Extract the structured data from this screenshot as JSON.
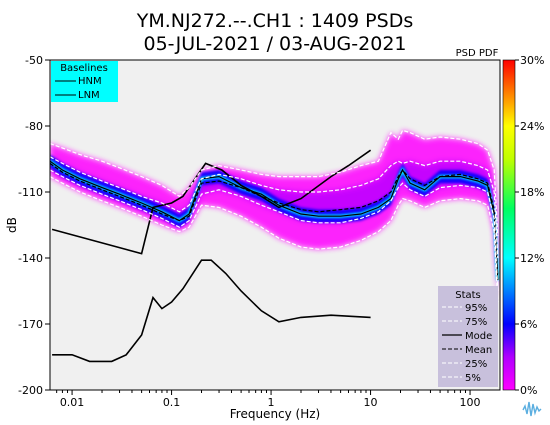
{
  "chart_data": {
    "type": "heatmap",
    "title": "YM.NJ272.--.CH1 : 1409 PSDs",
    "subtitle": "05-JUL-2021 / 03-AUG-2021",
    "xlabel": "Frequency (Hz)",
    "ylabel": "dB",
    "x_scale": "log",
    "xlim": [
      0.006,
      200
    ],
    "ylim": [
      -200,
      -50
    ],
    "x_ticks": [
      {
        "value": 0.01,
        "label": "0.01"
      },
      {
        "value": 0.1,
        "label": "0.1"
      },
      {
        "value": 1,
        "label": "1"
      },
      {
        "value": 10,
        "label": "10"
      },
      {
        "value": 100,
        "label": "100"
      }
    ],
    "y_ticks": [
      {
        "value": -50,
        "label": "-50"
      },
      {
        "value": -80,
        "label": "-80"
      },
      {
        "value": -110,
        "label": "-110"
      },
      {
        "value": -140,
        "label": "-140"
      },
      {
        "value": -170,
        "label": "-170"
      },
      {
        "value": -200,
        "label": "-200"
      }
    ],
    "colorbar": {
      "label": "PSD PDF",
      "range": [
        0,
        30
      ],
      "ticks": [
        "30%",
        "24%",
        "18%",
        "12%",
        "6%",
        "0%"
      ]
    },
    "baselines_legend": {
      "title": "Baselines",
      "entries": [
        "HNM",
        "LNM"
      ],
      "background": "#00ffff"
    },
    "stats_legend": {
      "title": "Stats",
      "entries": [
        "95%",
        "75%",
        "Mode",
        "Mean",
        "25%",
        "5%"
      ],
      "background": "#c8c0dc"
    },
    "series": [
      {
        "name": "HNM",
        "color": "#000000",
        "x": [
          0.0063,
          0.05,
          0.065,
          0.1,
          0.13,
          0.22,
          0.32,
          0.5,
          0.8,
          1.2,
          2,
          4,
          6,
          10
        ],
        "y": [
          -127,
          -138,
          -117,
          -115,
          -112,
          -97,
          -100,
          -107,
          -112,
          -117,
          -113,
          -103,
          -98,
          -91
        ]
      },
      {
        "name": "LNM",
        "color": "#000000",
        "x": [
          0.0063,
          0.01,
          0.015,
          0.025,
          0.035,
          0.05,
          0.065,
          0.08,
          0.1,
          0.13,
          0.2,
          0.25,
          0.35,
          0.5,
          0.8,
          1.2,
          2,
          4,
          10
        ],
        "y": [
          -184,
          -184,
          -187,
          -187,
          -184,
          -175,
          -158,
          -163,
          -160,
          -154,
          -141,
          -141,
          -147,
          -155,
          -164,
          -169,
          -167,
          -166,
          -167
        ]
      },
      {
        "name": "Mode",
        "color": "#000000",
        "x": [
          0.006,
          0.008,
          0.012,
          0.02,
          0.03,
          0.05,
          0.08,
          0.12,
          0.15,
          0.2,
          0.3,
          0.5,
          0.8,
          1.2,
          2,
          3,
          5,
          8,
          12,
          16,
          19,
          21,
          25,
          35,
          50,
          80,
          120,
          150,
          175,
          190
        ],
        "y": [
          -96,
          -100,
          -104,
          -108,
          -111,
          -115,
          -119,
          -123,
          -120,
          -104,
          -103,
          -108,
          -111,
          -116,
          -120,
          -121,
          -121,
          -120,
          -117,
          -113,
          -104,
          -100,
          -106,
          -109,
          -103,
          -103,
          -105,
          -107,
          -120,
          -150
        ]
      },
      {
        "name": "Mean",
        "color": "#000000",
        "x": [
          0.006,
          0.008,
          0.012,
          0.02,
          0.03,
          0.05,
          0.08,
          0.12,
          0.15,
          0.2,
          0.3,
          0.5,
          0.8,
          1.2,
          2,
          3,
          5,
          8,
          12,
          16,
          19,
          21,
          25,
          35,
          50,
          80,
          120,
          150,
          175,
          190
        ],
        "y": [
          -97,
          -101,
          -105,
          -109,
          -112,
          -116,
          -120,
          -123,
          -121,
          -106,
          -105,
          -108,
          -112,
          -115,
          -118,
          -119,
          -118,
          -117,
          -114,
          -110,
          -103,
          -100,
          -104,
          -107,
          -103,
          -102,
          -104,
          -106,
          -118,
          -148
        ]
      },
      {
        "name": "95%",
        "color": "#ffffff",
        "x": [
          0.006,
          0.008,
          0.012,
          0.02,
          0.03,
          0.05,
          0.08,
          0.12,
          0.15,
          0.2,
          0.3,
          0.5,
          0.8,
          1.2,
          2,
          3,
          5,
          8,
          12,
          16,
          19,
          21,
          25,
          35,
          50,
          80,
          120,
          150,
          175,
          190
        ],
        "y": [
          -88,
          -90,
          -93,
          -96,
          -99,
          -103,
          -107,
          -112,
          -108,
          -100,
          -98,
          -100,
          -102,
          -103,
          -103,
          -103,
          -101,
          -98,
          -96,
          -83,
          -86,
          -82,
          -83,
          -86,
          -85,
          -86,
          -88,
          -91,
          -100,
          -130
        ]
      },
      {
        "name": "75%",
        "color": "#ffffff",
        "x": [
          0.006,
          0.008,
          0.012,
          0.02,
          0.03,
          0.05,
          0.08,
          0.12,
          0.15,
          0.2,
          0.3,
          0.5,
          0.8,
          1.2,
          2,
          3,
          5,
          8,
          12,
          16,
          19,
          21,
          25,
          35,
          50,
          80,
          120,
          150,
          175,
          190
        ],
        "y": [
          -94,
          -97,
          -101,
          -105,
          -108,
          -112,
          -115,
          -119,
          -116,
          -104,
          -102,
          -104,
          -107,
          -109,
          -110,
          -110,
          -109,
          -107,
          -104,
          -98,
          -96,
          -97,
          -96,
          -98,
          -96,
          -96,
          -98,
          -100,
          -110,
          -140
        ]
      },
      {
        "name": "25%",
        "color": "#ffffff",
        "x": [
          0.006,
          0.008,
          0.012,
          0.02,
          0.03,
          0.05,
          0.08,
          0.12,
          0.15,
          0.2,
          0.3,
          0.5,
          0.8,
          1.2,
          2,
          3,
          5,
          8,
          12,
          16,
          19,
          21,
          25,
          35,
          50,
          80,
          120,
          150,
          175,
          190
        ],
        "y": [
          -100,
          -103,
          -107,
          -111,
          -114,
          -118,
          -122,
          -126,
          -123,
          -111,
          -109,
          -112,
          -116,
          -119,
          -123,
          -124,
          -124,
          -122,
          -119,
          -114,
          -108,
          -106,
          -109,
          -112,
          -108,
          -107,
          -108,
          -110,
          -122,
          -155
        ]
      },
      {
        "name": "5%",
        "color": "#ffffff",
        "x": [
          0.006,
          0.008,
          0.012,
          0.02,
          0.03,
          0.05,
          0.08,
          0.12,
          0.15,
          0.2,
          0.3,
          0.5,
          0.8,
          1.2,
          2,
          3,
          5,
          8,
          12,
          16,
          19,
          21,
          25,
          35,
          50,
          80,
          120,
          150,
          175,
          190
        ],
        "y": [
          -103,
          -106,
          -110,
          -114,
          -117,
          -121,
          -125,
          -128,
          -126,
          -116,
          -117,
          -121,
          -126,
          -131,
          -135,
          -136,
          -135,
          -132,
          -128,
          -123,
          -116,
          -113,
          -114,
          -117,
          -114,
          -113,
          -114,
          -116,
          -128,
          -160
        ]
      }
    ]
  }
}
